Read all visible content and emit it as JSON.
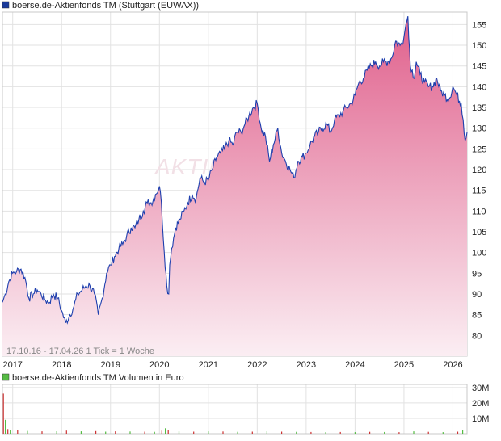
{
  "chart_data": [
    {
      "type": "area",
      "title": "boerse.de-Aktienfonds TM (Stuttgart (EUWAX))",
      "legend_color": "#1a3a9a",
      "line_color": "#1e3fae",
      "fill_top_color": "#e0608c",
      "fill_bottom_color": "#fbeef3",
      "watermark": "AKTIEN",
      "xlim": [
        2016.79,
        2026.29
      ],
      "ylim": [
        75,
        158
      ],
      "y_ticks": [
        80,
        85,
        90,
        95,
        100,
        105,
        110,
        115,
        120,
        125,
        130,
        135,
        140,
        145,
        150,
        155
      ],
      "x_ticks": [
        2017,
        2018,
        2019,
        2020,
        2021,
        2022,
        2023,
        2024,
        2025,
        2026
      ],
      "grid": true,
      "info": "17.10.16 - 17.04.26   1 Tick = 1 Woche",
      "series": [
        {
          "x": [
            2016.79,
            2016.85,
            2016.92,
            2017.0,
            2017.08,
            2017.17,
            2017.25,
            2017.33,
            2017.42,
            2017.5,
            2017.58,
            2017.67,
            2017.75,
            2017.83,
            2017.92,
            2018.0,
            2018.08,
            2018.17,
            2018.25,
            2018.33,
            2018.42,
            2018.5,
            2018.58,
            2018.67,
            2018.75,
            2018.83,
            2018.92,
            2019.0,
            2019.08,
            2019.17,
            2019.25,
            2019.33,
            2019.42,
            2019.5,
            2019.58,
            2019.67,
            2019.75,
            2019.83,
            2019.92,
            2020.0,
            2020.04,
            2020.1,
            2020.15,
            2020.19,
            2020.21,
            2020.25,
            2020.33,
            2020.42,
            2020.5,
            2020.58,
            2020.67,
            2020.75,
            2020.83,
            2020.92,
            2021.0,
            2021.08,
            2021.17,
            2021.25,
            2021.33,
            2021.42,
            2021.5,
            2021.58,
            2021.67,
            2021.75,
            2021.83,
            2021.92,
            2022.0,
            2022.08,
            2022.17,
            2022.25,
            2022.33,
            2022.42,
            2022.5,
            2022.58,
            2022.67,
            2022.75,
            2022.83,
            2022.92,
            2023.0,
            2023.08,
            2023.17,
            2023.25,
            2023.33,
            2023.42,
            2023.5,
            2023.58,
            2023.67,
            2023.75,
            2023.83,
            2023.92,
            2024.0,
            2024.08,
            2024.17,
            2024.25,
            2024.33,
            2024.42,
            2024.5,
            2024.58,
            2024.67,
            2024.75,
            2024.83,
            2024.92,
            2025.0,
            2025.04,
            2025.08,
            2025.13,
            2025.17,
            2025.21,
            2025.25,
            2025.33,
            2025.42,
            2025.5,
            2025.58,
            2025.67,
            2025.75,
            2025.83,
            2025.92,
            2026.0,
            2026.08,
            2026.17,
            2026.21,
            2026.25,
            2026.29
          ],
          "y": [
            88,
            90,
            93,
            95,
            95.5,
            96,
            94,
            89,
            90,
            91,
            90,
            88.5,
            88,
            90,
            89,
            86,
            83,
            85,
            87,
            90,
            91,
            92,
            92,
            90,
            85,
            89,
            95,
            97,
            99,
            101,
            102,
            104,
            106,
            106,
            108,
            110,
            112,
            112,
            114,
            116,
            112,
            100,
            92,
            90,
            97,
            101,
            106,
            108,
            110,
            112,
            114,
            113,
            118,
            117,
            117.5,
            120,
            123,
            124,
            125,
            127,
            126,
            129,
            129,
            131,
            133,
            135,
            136,
            130,
            128,
            122,
            126,
            130,
            124,
            122,
            120,
            118,
            122,
            123,
            124,
            126,
            128,
            129,
            130,
            131,
            129,
            132,
            133,
            134,
            135,
            136,
            138,
            141,
            142,
            144,
            145,
            146,
            145,
            146,
            146,
            147,
            151,
            150,
            152,
            155,
            157,
            145,
            144,
            142,
            146,
            143,
            141,
            140,
            140,
            142,
            139,
            138,
            137,
            140,
            138,
            136,
            132,
            127,
            129
          ]
        }
      ]
    },
    {
      "type": "bar",
      "title": "boerse.de-Aktienfonds TM Volumen in Euro",
      "legend_color": "#55bb44",
      "xlim": [
        2016.79,
        2026.29
      ],
      "ylim": [
        0,
        32000000
      ],
      "y_ticks": [
        0,
        10000000,
        20000000,
        30000000
      ],
      "y_tick_labels": [
        "",
        "10M",
        "20M",
        "30M"
      ],
      "grid": true,
      "series": [
        {
          "colors": [
            "#cc3333",
            "#55bb44"
          ],
          "x": [
            2016.81,
            2016.85,
            2016.9,
            2016.95,
            2017.1,
            2017.3,
            2017.6,
            2017.9,
            2018.1,
            2018.4,
            2018.7,
            2018.9,
            2019.1,
            2019.4,
            2019.7,
            2019.9,
            2020.05,
            2020.12,
            2020.18,
            2020.4,
            2020.7,
            2021.0,
            2021.3,
            2021.6,
            2021.9,
            2022.2,
            2022.5,
            2022.8,
            2023.1,
            2023.4,
            2023.7,
            2024.0,
            2024.3,
            2024.6,
            2024.9,
            2025.2,
            2025.5,
            2025.8,
            2026.1,
            2026.2
          ],
          "values": [
            26000000,
            9000000,
            3000000,
            2500000,
            2200000,
            1800000,
            1500000,
            1600000,
            2000000,
            1500000,
            1700000,
            1300000,
            1500000,
            1400000,
            1300000,
            1200000,
            2000000,
            3500000,
            2500000,
            1500000,
            1300000,
            1500000,
            1400000,
            1200000,
            1300000,
            1600000,
            1300000,
            1200000,
            1100000,
            1000000,
            1100000,
            1000000,
            1200000,
            1100000,
            1000000,
            1500000,
            1200000,
            1000000,
            1300000,
            2500000
          ]
        }
      ]
    }
  ]
}
